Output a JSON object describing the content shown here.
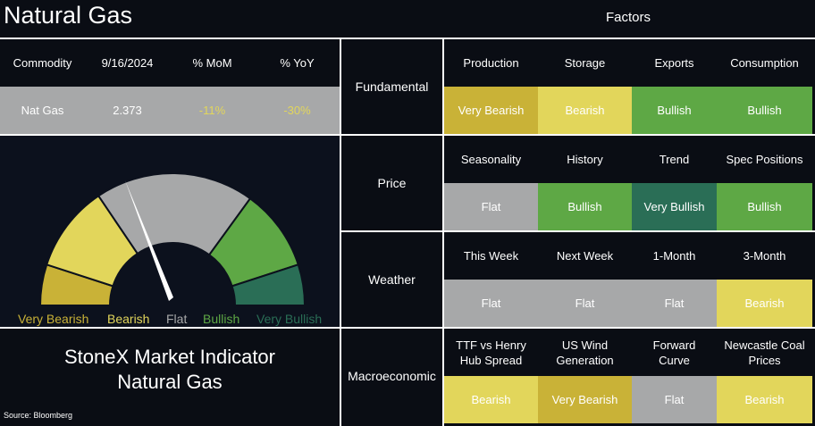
{
  "header": {
    "title": "Natural Gas",
    "factors_title": "Factors"
  },
  "commodity_table": {
    "columns": [
      "Commodity",
      "9/16/2024",
      "% MoM",
      "% YoY"
    ],
    "rows": [
      [
        "Nat Gas",
        "2.373",
        "-11%",
        "-30%"
      ]
    ]
  },
  "gauge": {
    "levels": [
      {
        "label": "Very Bearish",
        "color": "#c9b237"
      },
      {
        "label": "Bearish",
        "color": "#e2d65b"
      },
      {
        "label": "Flat",
        "color": "#a7a8a9"
      },
      {
        "label": "Bullish",
        "color": "#5ea845"
      },
      {
        "label": "Very Bullish",
        "color": "#2a6e56"
      }
    ]
  },
  "indicator": {
    "lines": [
      "StoneX Market Indicator",
      "Natural Gas"
    ]
  },
  "source": "Source: Bloomberg",
  "factor_groups": [
    {
      "name": "Fundamental",
      "factors": [
        {
          "name": "Production",
          "signal": "Very Bearish"
        },
        {
          "name": "Storage",
          "signal": "Bearish"
        },
        {
          "name": "Exports",
          "signal": "Bullish"
        },
        {
          "name": "Consumption",
          "signal": "Bullish"
        }
      ]
    },
    {
      "name": "Price",
      "factors": [
        {
          "name": "Seasonality",
          "signal": "Flat"
        },
        {
          "name": "History",
          "signal": "Bullish"
        },
        {
          "name": "Trend",
          "signal": "Very Bullish"
        },
        {
          "name": "Spec Positions",
          "signal": "Bullish"
        }
      ]
    },
    {
      "name": "Weather",
      "factors": [
        {
          "name": "This Week",
          "signal": "Flat"
        },
        {
          "name": "Next Week",
          "signal": "Flat"
        },
        {
          "name": "1-Month",
          "signal": "Flat"
        },
        {
          "name": "3-Month",
          "signal": "Bearish"
        }
      ]
    },
    {
      "name": "Macroeconomic",
      "factors": [
        {
          "name": "TTF vs Henry Hub Spread",
          "signal": "Bearish"
        },
        {
          "name": "US Wind Generation",
          "signal": "Very Bearish"
        },
        {
          "name": "Forward Curve",
          "signal": "Flat"
        },
        {
          "name": "Newcastle Coal Prices",
          "signal": "Bearish"
        }
      ]
    }
  ]
}
